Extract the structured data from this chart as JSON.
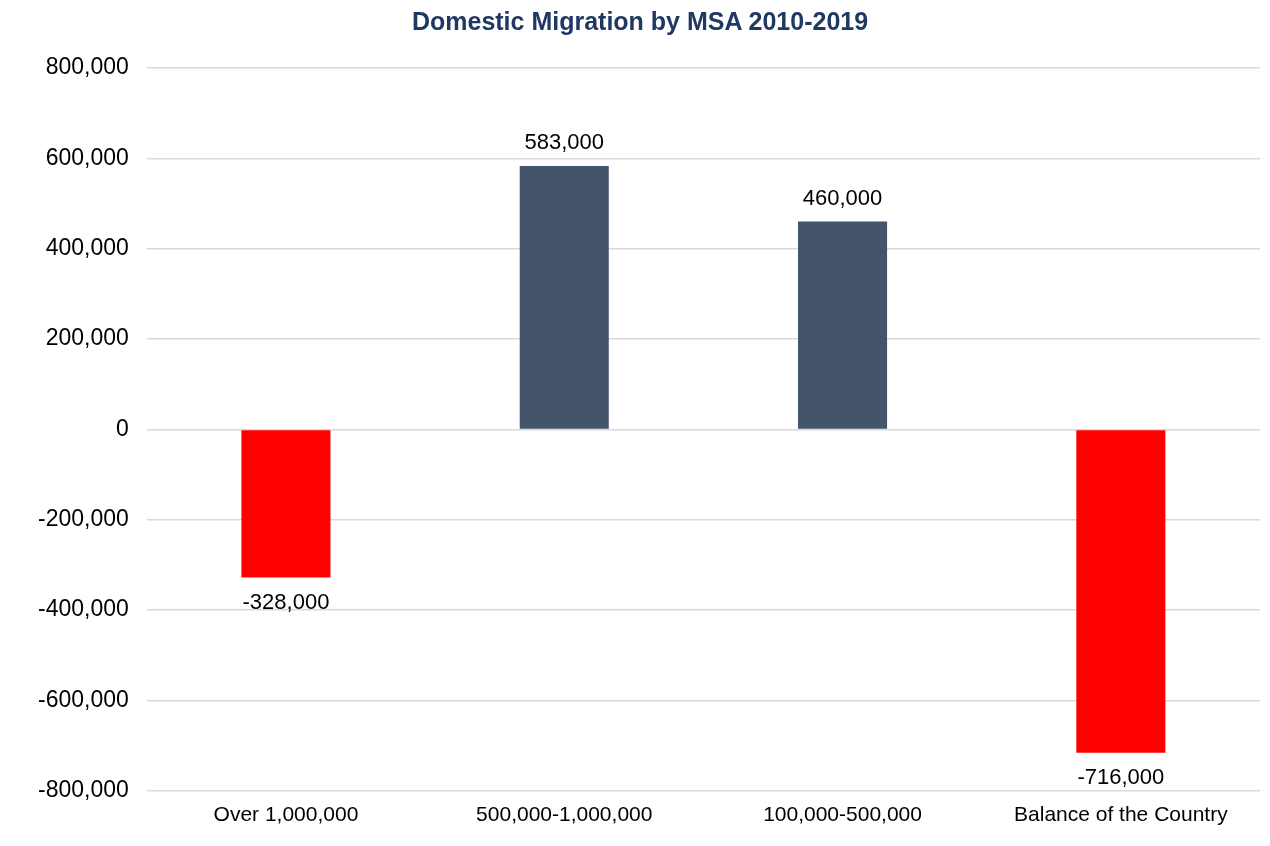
{
  "chart_data": {
    "type": "bar",
    "title": "Domestic Migration by MSA 2010-2019",
    "categories": [
      "Over 1,000,000",
      "500,000-1,000,000",
      "100,000-500,000",
      "Balance of the Country"
    ],
    "values": [
      -328000,
      583000,
      460000,
      -716000
    ],
    "value_labels": [
      "-328,000",
      "583,000",
      "460,000",
      "-716,000"
    ],
    "colors": [
      "#ff0000",
      "#44546a",
      "#44546a",
      "#ff0000"
    ],
    "ylim": [
      -800000,
      800000
    ],
    "yticks": [
      {
        "value": -800000,
        "label": "-800,000"
      },
      {
        "value": -600000,
        "label": "-600,000"
      },
      {
        "value": -400000,
        "label": "-400,000"
      },
      {
        "value": -200000,
        "label": "-200,000"
      },
      0,
      {
        "value": 200000,
        "label": "200,000"
      },
      {
        "value": 400000,
        "label": "400,000"
      },
      {
        "value": 600000,
        "label": "600,000"
      },
      {
        "value": 800000,
        "label": "800,000"
      }
    ],
    "grid": "y"
  }
}
